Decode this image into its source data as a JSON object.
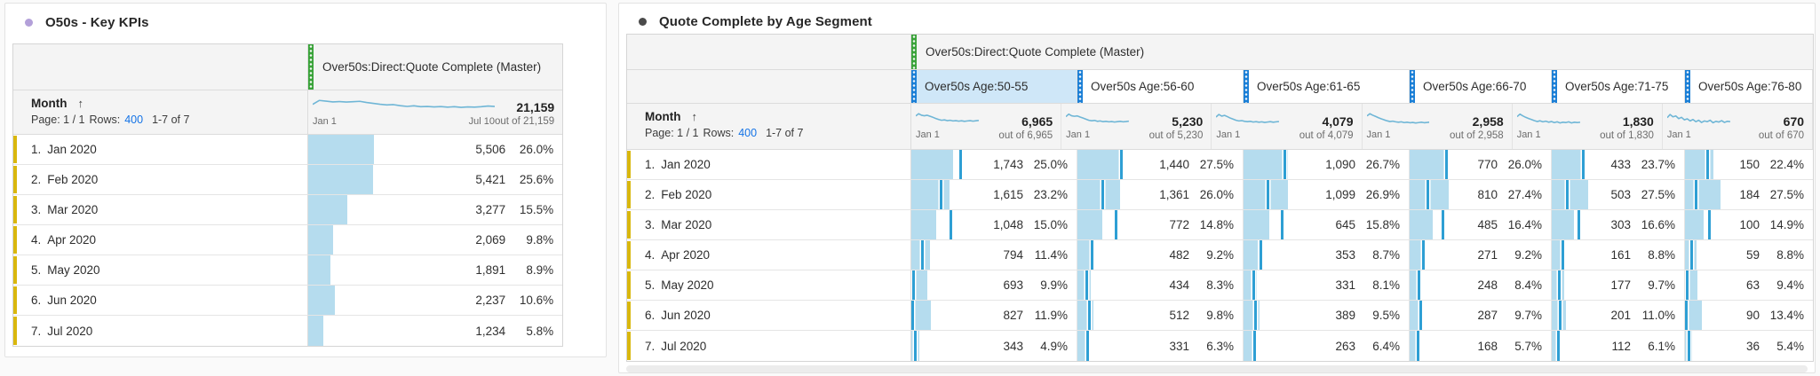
{
  "colors": {
    "dimension_handle_green": "#3aa33a",
    "segment_handle_blue": "#1b7fd6",
    "selected_segment_bg": "#cfe7f8",
    "bar_fill": "#b5dcee",
    "bar_tick": "#2e9fd4",
    "sparkline": "#6fb6d6",
    "row_marker_gold": "#d9b70d",
    "link_blue": "#1473e6",
    "left_title_dot": "#b3a0d9",
    "right_title_dot": "#4a4a4a"
  },
  "left_panel": {
    "title": "O50s - Key KPIs",
    "table": {
      "metric_header": "Over50s:Direct:Quote Complete (Master)",
      "dimension_header": "Month",
      "sort_arrow": "↑",
      "pagination": {
        "page": "Page: 1 / 1",
        "rows_label": "Rows:",
        "rows_value": "400",
        "range": "1-7 of 7"
      },
      "summary": {
        "total": "21,159",
        "out_of": "out of 21,159"
      },
      "spark_labels": {
        "start": "Jan 1",
        "end": "Jul 10"
      },
      "spark_shape": [
        52,
        74,
        70,
        66,
        68,
        65,
        67,
        69,
        63,
        58,
        53,
        49,
        51,
        45,
        41,
        44,
        39,
        41,
        38,
        40,
        37,
        39,
        36,
        38,
        37,
        39,
        43,
        41
      ],
      "rows": [
        {
          "rank": "1.",
          "month": "Jan 2020",
          "value": "5,506",
          "pct": "26.0%",
          "pct_num": 26.0
        },
        {
          "rank": "2.",
          "month": "Feb 2020",
          "value": "5,421",
          "pct": "25.6%",
          "pct_num": 25.6
        },
        {
          "rank": "3.",
          "month": "Mar 2020",
          "value": "3,277",
          "pct": "15.5%",
          "pct_num": 15.5
        },
        {
          "rank": "4.",
          "month": "Apr 2020",
          "value": "2,069",
          "pct": "9.8%",
          "pct_num": 9.8
        },
        {
          "rank": "5.",
          "month": "May 2020",
          "value": "1,891",
          "pct": "8.9%",
          "pct_num": 8.9
        },
        {
          "rank": "6.",
          "month": "Jun 2020",
          "value": "2,237",
          "pct": "10.6%",
          "pct_num": 10.6
        },
        {
          "rank": "7.",
          "month": "Jul 2020",
          "value": "1,234",
          "pct": "5.8%",
          "pct_num": 5.8
        }
      ]
    }
  },
  "right_panel": {
    "title": "Quote Complete by Age Segment",
    "table": {
      "metric_header": "Over50s:Direct:Quote Complete (Master)",
      "dimension_header": "Month",
      "sort_arrow": "↑",
      "pagination": {
        "page": "Page: 1 / 1",
        "rows_label": "Rows:",
        "rows_value": "400",
        "range": "1-7 of 7"
      },
      "spark_start_label": "Jan 1",
      "rows": [
        {
          "rank": "1.",
          "month": "Jan 2020"
        },
        {
          "rank": "2.",
          "month": "Feb 2020"
        },
        {
          "rank": "3.",
          "month": "Mar 2020"
        },
        {
          "rank": "4.",
          "month": "Apr 2020"
        },
        {
          "rank": "5.",
          "month": "May 2020"
        },
        {
          "rank": "6.",
          "month": "Jun 2020"
        },
        {
          "rank": "7.",
          "month": "Jul 2020"
        }
      ],
      "segments": [
        {
          "label": "Over50s Age:50-55",
          "selected": true,
          "total": "6,965",
          "out_of": "out of 6,965",
          "spark_shape": [
            62,
            74,
            66,
            63,
            66,
            60,
            54,
            48,
            42,
            38,
            40,
            36,
            38,
            34,
            36,
            33,
            35,
            32,
            34,
            36,
            33,
            35,
            37
          ],
          "cells": [
            {
              "value": "1,743",
              "pct": "25.0%",
              "pct_num": 25.0,
              "tick_pct": 29.5
            },
            {
              "value": "1,615",
              "pct": "23.2%",
              "pct_num": 23.2,
              "tick_pct": 17.6
            },
            {
              "value": "1,048",
              "pct": "15.0%",
              "pct_num": 15.0,
              "tick_pct": 23.5
            },
            {
              "value": "794",
              "pct": "11.4%",
              "pct_num": 11.4,
              "tick_pct": 6.5
            },
            {
              "value": "693",
              "pct": "9.9%",
              "pct_num": 9.9,
              "tick_pct": 1.2
            },
            {
              "value": "827",
              "pct": "11.9%",
              "pct_num": 11.9,
              "tick_pct": 0.4
            },
            {
              "value": "343",
              "pct": "4.9%",
              "pct_num": 4.9,
              "tick_pct": 2.2
            }
          ]
        },
        {
          "label": "Over50s Age:56-60",
          "selected": false,
          "total": "5,230",
          "out_of": "out of 5,230",
          "spark_shape": [
            58,
            72,
            63,
            60,
            62,
            56,
            50,
            44,
            38,
            35,
            37,
            32,
            34,
            30,
            32,
            29,
            31,
            28,
            30,
            32,
            29,
            31,
            33
          ],
          "cells": [
            {
              "value": "1,440",
              "pct": "27.5%",
              "pct_num": 27.5,
              "tick_pct": 26.2
            },
            {
              "value": "1,361",
              "pct": "26.0%",
              "pct_num": 26.0,
              "tick_pct": 14.9
            },
            {
              "value": "772",
              "pct": "14.8%",
              "pct_num": 14.8,
              "tick_pct": 23.0
            },
            {
              "value": "482",
              "pct": "9.2%",
              "pct_num": 9.2,
              "tick_pct": 8.6
            },
            {
              "value": "434",
              "pct": "8.3%",
              "pct_num": 8.3,
              "tick_pct": 5.4
            },
            {
              "value": "512",
              "pct": "9.8%",
              "pct_num": 9.8,
              "tick_pct": 6.8
            },
            {
              "value": "331",
              "pct": "6.3%",
              "pct_num": 6.3,
              "tick_pct": 6.0
            }
          ]
        },
        {
          "label": "Over50s Age:61-65",
          "selected": false,
          "total": "4,079",
          "out_of": "out of 4,079",
          "spark_shape": [
            56,
            70,
            61,
            65,
            58,
            50,
            44,
            38,
            34,
            36,
            32,
            30,
            32,
            28,
            30,
            27,
            29,
            26,
            28,
            30,
            27,
            29,
            31
          ],
          "cells": [
            {
              "value": "1,090",
              "pct": "26.7%",
              "pct_num": 26.7,
              "tick_pct": 24.8
            },
            {
              "value": "1,099",
              "pct": "26.9%",
              "pct_num": 26.9,
              "tick_pct": 14.7
            },
            {
              "value": "645",
              "pct": "15.8%",
              "pct_num": 15.8,
              "tick_pct": 23.0
            },
            {
              "value": "353",
              "pct": "8.7%",
              "pct_num": 8.7,
              "tick_pct": 10.0
            },
            {
              "value": "331",
              "pct": "8.1%",
              "pct_num": 8.1,
              "tick_pct": 6.0
            },
            {
              "value": "389",
              "pct": "9.5%",
              "pct_num": 9.5,
              "tick_pct": 7.2
            },
            {
              "value": "263",
              "pct": "6.4%",
              "pct_num": 6.4,
              "tick_pct": 6.5
            }
          ]
        },
        {
          "label": "Over50s Age:66-70",
          "selected": false,
          "total": "2,958",
          "out_of": "out of 2,958",
          "spark_shape": [
            62,
            74,
            66,
            59,
            52,
            46,
            40,
            35,
            31,
            33,
            29,
            27,
            29,
            25,
            27,
            24,
            26,
            23,
            25,
            27,
            24,
            26,
            28
          ],
          "cells": [
            {
              "value": "770",
              "pct": "26.0%",
              "pct_num": 26.0,
              "tick_pct": 26.0
            },
            {
              "value": "810",
              "pct": "27.4%",
              "pct_num": 27.4,
              "tick_pct": 12.8
            },
            {
              "value": "485",
              "pct": "16.4%",
              "pct_num": 16.4,
              "tick_pct": 23.3
            },
            {
              "value": "271",
              "pct": "9.2%",
              "pct_num": 9.2,
              "tick_pct": 9.2
            },
            {
              "value": "248",
              "pct": "8.4%",
              "pct_num": 8.4,
              "tick_pct": 6.5
            },
            {
              "value": "287",
              "pct": "9.7%",
              "pct_num": 9.7,
              "tick_pct": 7.5
            },
            {
              "value": "168",
              "pct": "5.7%",
              "pct_num": 5.7,
              "tick_pct": 5.5
            }
          ]
        },
        {
          "label": "Over50s Age:71-75",
          "selected": false,
          "total": "1,830",
          "out_of": "out of 1,830",
          "spark_shape": [
            58,
            72,
            62,
            54,
            48,
            42,
            36,
            31,
            35,
            29,
            33,
            27,
            31,
            25,
            29,
            23,
            27,
            25,
            29,
            23,
            27,
            25,
            27
          ],
          "cells": [
            {
              "value": "433",
              "pct": "23.7%",
              "pct_num": 23.7,
              "tick_pct": 23.3
            },
            {
              "value": "503",
              "pct": "27.5%",
              "pct_num": 27.5,
              "tick_pct": 11.2
            },
            {
              "value": "303",
              "pct": "16.6%",
              "pct_num": 16.6,
              "tick_pct": 20.0
            },
            {
              "value": "161",
              "pct": "8.8%",
              "pct_num": 8.8,
              "tick_pct": 8.0
            },
            {
              "value": "177",
              "pct": "9.7%",
              "pct_num": 9.7,
              "tick_pct": 5.2
            },
            {
              "value": "201",
              "pct": "11.0%",
              "pct_num": 11.0,
              "tick_pct": 6.2
            },
            {
              "value": "112",
              "pct": "6.1%",
              "pct_num": 6.1,
              "tick_pct": 5.0
            }
          ]
        },
        {
          "label": "Over50s Age:76-80",
          "selected": false,
          "total": "670",
          "out_of": "out of 670",
          "spark_shape": [
            52,
            70,
            57,
            62,
            47,
            54,
            40,
            46,
            34,
            42,
            30,
            38,
            26,
            34,
            30,
            38,
            24,
            32,
            28,
            36,
            26,
            32,
            30
          ],
          "cells": [
            {
              "value": "150",
              "pct": "22.4%",
              "pct_num": 22.4,
              "tick_pct": 17.5
            },
            {
              "value": "184",
              "pct": "27.5%",
              "pct_num": 27.5,
              "tick_pct": 8.2
            },
            {
              "value": "100",
              "pct": "14.9%",
              "pct_num": 14.9,
              "tick_pct": 19.0
            },
            {
              "value": "59",
              "pct": "8.8%",
              "pct_num": 8.8,
              "tick_pct": 5.0
            },
            {
              "value": "63",
              "pct": "9.4%",
              "pct_num": 9.4,
              "tick_pct": 1.5
            },
            {
              "value": "90",
              "pct": "13.4%",
              "pct_num": 13.4,
              "tick_pct": 0.5
            },
            {
              "value": "36",
              "pct": "5.4%",
              "pct_num": 5.4,
              "tick_pct": 3.0
            }
          ]
        }
      ]
    }
  }
}
